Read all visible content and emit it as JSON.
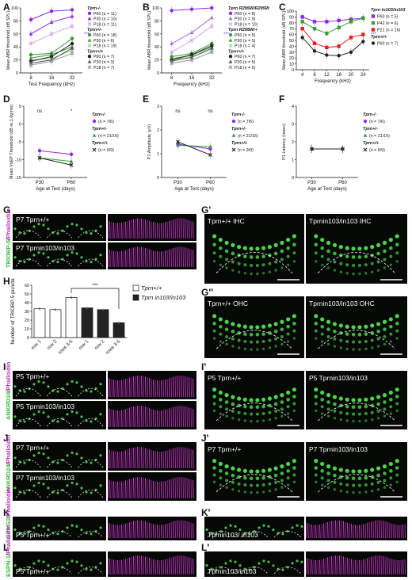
{
  "panels": {
    "A": "A",
    "B": "B",
    "C": "C",
    "D": "D",
    "E": "E",
    "F": "F",
    "G": "G",
    "G1": "G'",
    "G2": "G''",
    "H": "H",
    "I": "I",
    "I1": "I'",
    "J": "J",
    "J1": "J'",
    "K": "K",
    "K1": "K'",
    "L": "L",
    "L1": "L'"
  },
  "colors": {
    "purple": "#8a2be2",
    "green": "#3a9d3a",
    "black": "#222222",
    "red": "#e02020",
    "magenta": "#c02fc0",
    "stain_green": "#2fbf2f"
  },
  "chart_data": [
    {
      "type": "line",
      "panel": "A",
      "xlabel": "Test Frequency (kHz)",
      "ylabel": "Mean ABR threshold (dB SPL)",
      "categories": [
        "8",
        "16",
        "32"
      ],
      "ylim": [
        0,
        100
      ],
      "yticks": [
        "0",
        "20",
        "40",
        "60",
        "80",
        "100"
      ],
      "legend_groups": [
        "Tprn-/-",
        "Tprn+/-",
        "Tprn+/+"
      ],
      "sig": "***",
      "series": [
        {
          "name": "P60 (n = 11)",
          "group": 0,
          "color": "#8a2be2",
          "marker": "circle",
          "values": [
            82,
            95,
            97
          ]
        },
        {
          "name": "P30 (n = 10)",
          "group": 0,
          "color": "#8a2be2",
          "marker": "tri",
          "values": [
            60,
            78,
            87
          ]
        },
        {
          "name": "P18 (n = 11)",
          "group": 0,
          "color": "#c9a6ee",
          "marker": "cross",
          "values": [
            45,
            60,
            72
          ]
        },
        {
          "name": "P60 (n = 18)",
          "group": 1,
          "color": "#3a9d3a",
          "marker": "circle",
          "values": [
            28,
            30,
            53
          ]
        },
        {
          "name": "P30 (n = 6)",
          "group": 1,
          "color": "#3a9d3a",
          "marker": "tri",
          "values": [
            23,
            28,
            40
          ]
        },
        {
          "name": "P18 (n = 19)",
          "group": 1,
          "color": "#9ad29a",
          "marker": "cross",
          "values": [
            20,
            22,
            35
          ]
        },
        {
          "name": "P60 (n = 7)",
          "group": 2,
          "color": "#222222",
          "marker": "circle",
          "values": [
            18,
            25,
            45
          ]
        },
        {
          "name": "P30 (n = 3)",
          "group": 2,
          "color": "#555555",
          "marker": "tri",
          "values": [
            15,
            20,
            38
          ]
        },
        {
          "name": "P18 (n = 7)",
          "group": 2,
          "color": "#999999",
          "marker": "cross",
          "values": [
            12,
            18,
            30
          ]
        }
      ]
    },
    {
      "type": "line",
      "panel": "B",
      "xlabel": "Frequency (kHz)",
      "ylabel": "Mean ABR threshold (dB SPL)",
      "categories": [
        "8",
        "16",
        "32"
      ],
      "ylim": [
        0,
        100
      ],
      "yticks": [
        "0",
        "20",
        "40",
        "60",
        "80",
        "100"
      ],
      "legend_groups": [
        "Tprn R295W/R295W",
        "Tprn R295W/+",
        "Tprn+/+"
      ],
      "sig": "***",
      "series": [
        {
          "name": "P60 (n = 8)",
          "group": 0,
          "color": "#8a2be2",
          "marker": "circle",
          "values": [
            96,
            98,
            100
          ]
        },
        {
          "name": "P30 (n = 9)",
          "group": 0,
          "color": "#a070e0",
          "marker": "tri",
          "values": [
            45,
            62,
            85
          ]
        },
        {
          "name": "P18 (n = 10)",
          "group": 0,
          "color": "#c9a6ee",
          "marker": "cross",
          "values": [
            32,
            50,
            72
          ]
        },
        {
          "name": "P60 (n = 5)",
          "group": 1,
          "color": "#3a9d3a",
          "marker": "circle",
          "values": [
            25,
            30,
            45
          ]
        },
        {
          "name": "P30 (n = 5)",
          "group": 1,
          "color": "#3a9d3a",
          "marker": "tri",
          "values": [
            22,
            27,
            40
          ]
        },
        {
          "name": "P18 (n = 4)",
          "group": 1,
          "color": "#9ad29a",
          "marker": "cross",
          "values": [
            20,
            25,
            35
          ]
        },
        {
          "name": "P60 (n = 7)",
          "group": 2,
          "color": "#222222",
          "marker": "circle",
          "values": [
            20,
            28,
            42
          ]
        },
        {
          "name": "P30 (n = 5)",
          "group": 2,
          "color": "#555555",
          "marker": "tri",
          "values": [
            18,
            24,
            38
          ]
        },
        {
          "name": "P18 (n = 5)",
          "group": 2,
          "color": "#999999",
          "marker": "cross",
          "values": [
            15,
            20,
            32
          ]
        }
      ]
    },
    {
      "type": "line",
      "panel": "C",
      "xlabel": "Frequency (kHz)",
      "ylabel": "Mean ABR threshold (dB SPL)",
      "categories": [
        "4",
        "8",
        "12",
        "16",
        "20",
        "24"
      ],
      "ylim": [
        0,
        100
      ],
      "yticks": [
        "0",
        "10",
        "20",
        "30",
        "40",
        "50",
        "60",
        "70",
        "80",
        "90",
        "100"
      ],
      "legend_groups": [
        "Tprn in103/in103",
        "Tprn+/+"
      ],
      "sig": "***",
      "series": [
        {
          "name": "P60 (n = 5)",
          "group": 0,
          "color": "#8a2be2",
          "marker": "square",
          "values": [
            90,
            82,
            82,
            84,
            86,
            88
          ]
        },
        {
          "name": "P42 (n = 6)",
          "group": 0,
          "color": "#3a9d3a",
          "marker": "square",
          "values": [
            82,
            70,
            62,
            72,
            82,
            88
          ]
        },
        {
          "name": "P21 (n = 16)",
          "group": 0,
          "color": "#e02020",
          "marker": "square",
          "values": [
            70,
            45,
            38,
            40,
            55,
            60
          ]
        },
        {
          "name": "P60 (n = 7)",
          "group": 1,
          "color": "#222222",
          "marker": "circle",
          "values": [
            55,
            32,
            25,
            24,
            30,
            48
          ]
        }
      ]
    },
    {
      "type": "line",
      "panel": "D",
      "xlabel": "Age at Test (days)",
      "ylabel": "Mean VsEP Threshold (dB re.1.0g/ms)",
      "categories": [
        "P30",
        "P60"
      ],
      "ylim": [
        -15,
        5
      ],
      "yticks": [
        "-15",
        "-10",
        "-5",
        "0",
        "5"
      ],
      "annotations": [
        "ns",
        "*"
      ],
      "series": [
        {
          "name": "(n = 7/6)",
          "label": "Tprn-/-",
          "color": "#8a2be2",
          "marker": "circle",
          "values": [
            -7.5,
            -8.5
          ]
        },
        {
          "name": "(n = 21/16)",
          "label": "Tprn+/-",
          "color": "#3a9d3a",
          "marker": "tri",
          "values": [
            -9.5,
            -10.5
          ]
        },
        {
          "name": "(n = 9/9)",
          "label": "Tprn+/+",
          "color": "#222222",
          "marker": "cross",
          "values": [
            -9.5,
            -11.5
          ]
        }
      ]
    },
    {
      "type": "line",
      "panel": "E",
      "xlabel": "Age at Test (days)",
      "ylabel": "P1 Amplitude (µV)",
      "categories": [
        "P30",
        "P60"
      ],
      "ylim": [
        0,
        3
      ],
      "yticks": [
        "0",
        "1",
        "2",
        "3"
      ],
      "annotations": [
        "ns",
        "ns"
      ],
      "series": [
        {
          "name": "(n = 7/6)",
          "label": "Tprn-/-",
          "color": "#8a2be2",
          "marker": "circle",
          "values": [
            1.4,
            1.2
          ]
        },
        {
          "name": "(n = 21/16)",
          "label": "Tprn+/-",
          "color": "#3a9d3a",
          "marker": "tri",
          "values": [
            1.35,
            1.3
          ]
        },
        {
          "name": "(n = 9/9)",
          "label": "Tprn+/+",
          "color": "#222222",
          "marker": "cross",
          "values": [
            1.5,
            0.95
          ]
        }
      ]
    },
    {
      "type": "line",
      "panel": "F",
      "xlabel": "Age at Test (days)",
      "ylabel": "P1 Latency (msec)",
      "categories": [
        "P30",
        "P60"
      ],
      "ylim": [
        0,
        4
      ],
      "yticks": [
        "0",
        "1",
        "2",
        "3",
        "4"
      ],
      "series": [
        {
          "name": "(n = 7/6)",
          "label": "Tprn-/-",
          "color": "#8a2be2",
          "marker": "circle",
          "values": [
            1.6,
            1.6
          ]
        },
        {
          "name": "(n = 21/16)",
          "label": "Tprn+/-",
          "color": "#3a9d3a",
          "marker": "tri",
          "values": [
            1.6,
            1.6
          ]
        },
        {
          "name": "(n = 9/9)",
          "label": "Tprn+/+",
          "color": "#222222",
          "marker": "cross",
          "values": [
            1.6,
            1.6
          ]
        }
      ]
    },
    {
      "type": "bar",
      "panel": "H",
      "ylabel": "Number of TRIOBP-5 puncta",
      "categories": [
        "row 1",
        "row 2",
        "rows 3-5",
        "row 1",
        "row 2",
        "rows 3-5"
      ],
      "ylim": [
        0,
        60
      ],
      "yticks": [
        "0",
        "10",
        "20",
        "30",
        "40",
        "50",
        "60"
      ],
      "sig": "***",
      "series": [
        {
          "name": "Tprn+/+",
          "color": "#ffffff",
          "values": [
            33,
            32,
            46,
            null,
            null,
            null
          ]
        },
        {
          "name": "Tprn in103/in103",
          "color": "#222222",
          "values": [
            null,
            null,
            null,
            34,
            32,
            17
          ]
        }
      ]
    }
  ],
  "legends": {
    "A": [
      "Tprn-/-",
      "Tprn+/-",
      "Tprn+/+"
    ],
    "D": {
      "g0": "Tprn-/-",
      "g1": "Tprn+/-",
      "g2": "Tprn+/+"
    }
  },
  "micro": {
    "G_top": "P7 Tprn+/+",
    "G_bot": "P7 Tprnin103/in103",
    "G1_left": "Tprn+/+ IHC",
    "G1_right": "Tprnin103/in103 IHC",
    "G2_left": "Tprn+/+ OHC",
    "G2_right": "Tprnin103/in103 OHC",
    "I_top": "P5 Tprn+/+",
    "I_bot": "P5 Tprnin103/in103",
    "I1_left": "P5 Tprn+/+",
    "I1_right": "P5 Tprnin103/in103",
    "J_top": "P7 Tprn+/+",
    "J_bot": "P7 Tprnin103/in103",
    "J1_left": "P7 Tprn+/+",
    "J1_right": "P7 Tprnin103/in103",
    "K_label": "P5 Tprn+/+",
    "K1_label": "Tprnin103/ in103",
    "L_label": "P5 Tprn+/+",
    "L1_label": "Tprnin103/in103"
  },
  "stains": {
    "G": [
      "TRIOBP-5",
      "Phalloidin"
    ],
    "I": [
      "ANKRD24",
      "Phalloidin"
    ],
    "J": [
      "ANKRD24",
      "Phalloidin"
    ],
    "K": [
      "GPMS2",
      "Phalloidin"
    ],
    "L": [
      "ESPN-1",
      "Phalloidin"
    ]
  }
}
